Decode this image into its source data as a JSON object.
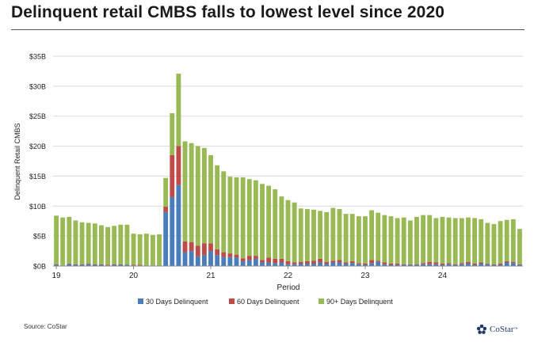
{
  "title": "Delinquent retail CMBS falls to lowest level since 2020",
  "source": "Source: CoStar",
  "logo": {
    "text": "CoStar",
    "tm": "™",
    "icon": "costar-star-icon"
  },
  "colors": {
    "d30": "#4a7ebb",
    "d60": "#be4b48",
    "d90": "#98b954",
    "grid": "#d9d9d9",
    "axis": "#888888",
    "text": "#222222"
  },
  "chart_data": {
    "type": "bar",
    "stacked": true,
    "xlabel": "Period",
    "ylabel": "Delinquent Retail CMBS",
    "ylim": [
      0,
      35
    ],
    "yticks": [
      0,
      5,
      10,
      15,
      20,
      25,
      30,
      35
    ],
    "ytick_labels": [
      "$0B",
      "$5B",
      "$10B",
      "$15B",
      "$20B",
      "$25B",
      "$30B",
      "$35B"
    ],
    "xticks": [
      {
        "label": "19",
        "index": 0
      },
      {
        "label": "20",
        "index": 12
      },
      {
        "label": "21",
        "index": 24
      },
      {
        "label": "22",
        "index": 36
      },
      {
        "label": "23",
        "index": 48
      },
      {
        "label": "24",
        "index": 60
      }
    ],
    "grid": true,
    "legend_position": "bottom",
    "series": [
      {
        "name": "30 Days Delinquent",
        "color_key": "d30",
        "values": [
          0.2,
          0.1,
          0.3,
          0.2,
          0.2,
          0.3,
          0.2,
          0.2,
          0.1,
          0.2,
          0.2,
          0.2,
          0.1,
          0.1,
          0.1,
          0.1,
          0.1,
          9.0,
          11.5,
          13.5,
          2.3,
          2.5,
          1.6,
          1.8,
          2.5,
          1.8,
          1.5,
          1.5,
          1.4,
          0.8,
          1.0,
          1.2,
          0.6,
          0.6,
          0.5,
          0.6,
          0.3,
          0.3,
          0.4,
          0.4,
          0.4,
          0.6,
          0.4,
          0.6,
          0.6,
          0.4,
          0.5,
          0.3,
          0.2,
          0.5,
          0.7,
          0.3,
          0.2,
          0.2,
          0.2,
          0.2,
          0.2,
          0.3,
          0.3,
          0.3,
          0.2,
          0.3,
          0.2,
          0.3,
          0.4,
          0.2,
          0.4,
          0.3,
          0.2,
          0.2,
          0.6,
          0.5,
          0.2
        ]
      },
      {
        "name": "60 Days Delinquent",
        "color_key": "d60",
        "values": [
          0.1,
          0.0,
          0.1,
          0.1,
          0.1,
          0.1,
          0.1,
          0.1,
          0.1,
          0.1,
          0.1,
          0.0,
          0.1,
          0.1,
          0.0,
          0.0,
          0.0,
          0.9,
          7.0,
          6.5,
          1.8,
          1.5,
          1.8,
          2.0,
          1.3,
          1.0,
          0.8,
          0.6,
          0.5,
          0.5,
          0.7,
          0.5,
          0.4,
          0.8,
          0.7,
          0.6,
          0.5,
          0.3,
          0.3,
          0.4,
          0.5,
          0.6,
          0.3,
          0.3,
          0.4,
          0.2,
          0.3,
          0.2,
          0.2,
          0.5,
          0.2,
          0.3,
          0.2,
          0.2,
          0.1,
          0.1,
          0.1,
          0.2,
          0.4,
          0.3,
          0.2,
          0.2,
          0.1,
          0.2,
          0.3,
          0.2,
          0.2,
          0.1,
          0.1,
          0.2,
          0.2,
          0.2,
          0.1
        ]
      },
      {
        "name": "90+ Days Delinquent",
        "color_key": "d90",
        "values": [
          8.1,
          8.0,
          7.8,
          7.3,
          7.0,
          6.8,
          6.8,
          6.5,
          6.3,
          6.4,
          6.6,
          6.7,
          5.2,
          5.1,
          5.3,
          5.1,
          5.2,
          4.8,
          7.0,
          12.1,
          16.7,
          16.5,
          16.6,
          15.9,
          14.7,
          14.0,
          13.5,
          12.8,
          12.9,
          13.5,
          12.8,
          12.6,
          12.7,
          12.0,
          11.6,
          10.4,
          10.2,
          10.0,
          8.9,
          8.7,
          8.5,
          8.0,
          8.3,
          8.8,
          8.5,
          8.1,
          7.9,
          7.8,
          7.9,
          8.3,
          8.0,
          7.9,
          7.9,
          7.6,
          7.8,
          7.3,
          7.9,
          8.0,
          7.8,
          7.4,
          7.8,
          7.6,
          7.7,
          7.5,
          7.4,
          7.6,
          7.2,
          6.8,
          6.7,
          7.1,
          6.9,
          7.1,
          5.9
        ]
      }
    ]
  }
}
